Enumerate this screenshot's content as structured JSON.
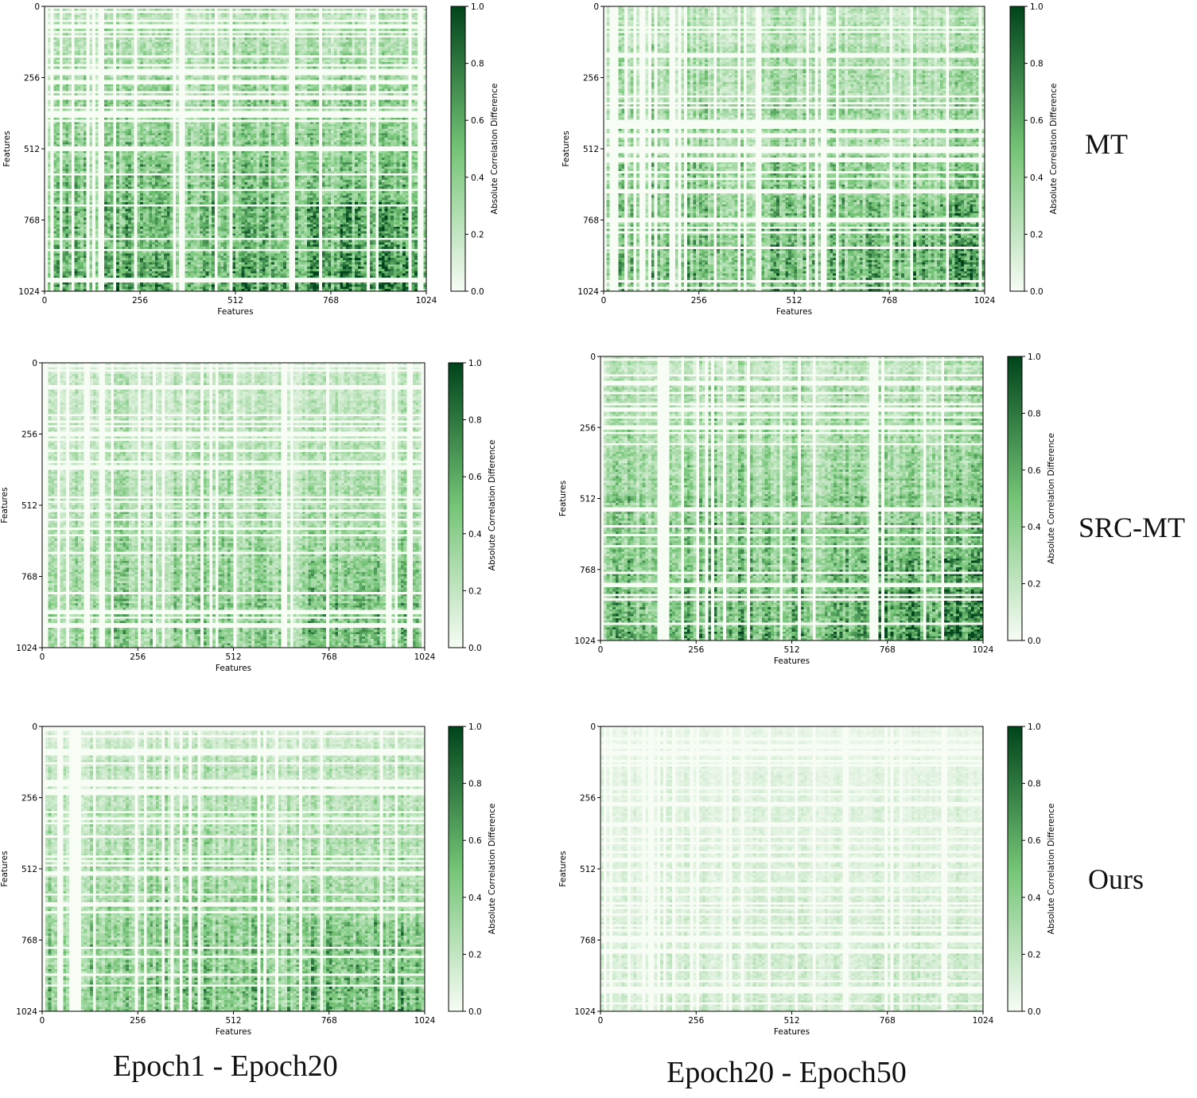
{
  "figure": {
    "column_labels": [
      "Epoch1  -  Epoch20",
      "Epoch20  -  Epoch50"
    ],
    "row_labels": [
      "MT",
      "SRC-MT",
      "Ours"
    ]
  },
  "colors": {
    "cmap_low": "#f7fcf5",
    "cmap_mid": "#74c476",
    "cmap_high": "#00441b",
    "axis": "#000000"
  },
  "chart_data": [
    {
      "type": "heatmap",
      "model": "MT",
      "comparison": "Epoch1 - Epoch20",
      "xlabel": "Features",
      "ylabel": "Features",
      "xticks": [
        "0",
        "256",
        "512",
        "768",
        "1024"
      ],
      "yticks": [
        "0",
        "256",
        "512",
        "768",
        "1024"
      ],
      "xlim": [
        0,
        1024
      ],
      "ylim": [
        1024,
        0
      ],
      "colorbar": {
        "label": "Absolute Correlation Difference",
        "range": [
          0.0,
          1.0
        ],
        "ticks": [
          "0.0",
          "0.2",
          "0.4",
          "0.6",
          "0.8",
          "1.0"
        ]
      },
      "mean_intensity": 0.45,
      "seed": 11
    },
    {
      "type": "heatmap",
      "model": "MT",
      "comparison": "Epoch20 - Epoch50",
      "xlabel": "Features",
      "ylabel": "Features",
      "xticks": [
        "0",
        "256",
        "512",
        "768",
        "1024"
      ],
      "yticks": [
        "0",
        "256",
        "512",
        "768",
        "1024"
      ],
      "xlim": [
        0,
        1024
      ],
      "ylim": [
        1024,
        0
      ],
      "colorbar": {
        "label": "Absolute Correlation Difference",
        "range": [
          0.0,
          1.0
        ],
        "ticks": [
          "0.0",
          "0.2",
          "0.4",
          "0.6",
          "0.8",
          "1.0"
        ]
      },
      "mean_intensity": 0.42,
      "seed": 23
    },
    {
      "type": "heatmap",
      "model": "SRC-MT",
      "comparison": "Epoch1 - Epoch20",
      "xlabel": "Features",
      "ylabel": "Features",
      "xticks": [
        "0",
        "256",
        "512",
        "768",
        "1024"
      ],
      "yticks": [
        "0",
        "256",
        "512",
        "768",
        "1024"
      ],
      "xlim": [
        0,
        1024
      ],
      "ylim": [
        1024,
        0
      ],
      "colorbar": {
        "label": "Absolute Correlation Difference",
        "range": [
          0.0,
          1.0
        ],
        "ticks": [
          "0.0",
          "0.2",
          "0.4",
          "0.6",
          "0.8",
          "1.0"
        ]
      },
      "mean_intensity": 0.32,
      "seed": 37
    },
    {
      "type": "heatmap",
      "model": "SRC-MT",
      "comparison": "Epoch20 - Epoch50",
      "xlabel": "Features",
      "ylabel": "Features",
      "xticks": [
        "0",
        "256",
        "512",
        "768",
        "1024"
      ],
      "yticks": [
        "0",
        "256",
        "512",
        "768",
        "1024"
      ],
      "xlim": [
        0,
        1024
      ],
      "ylim": [
        1024,
        0
      ],
      "colorbar": {
        "label": "Absolute Correlation Difference",
        "range": [
          0.0,
          1.0
        ],
        "ticks": [
          "0.0",
          "0.2",
          "0.4",
          "0.6",
          "0.8",
          "1.0"
        ]
      },
      "mean_intensity": 0.44,
      "seed": 41
    },
    {
      "type": "heatmap",
      "model": "Ours",
      "comparison": "Epoch1 - Epoch20",
      "xlabel": "Features",
      "ylabel": "Features",
      "xticks": [
        "0",
        "256",
        "512",
        "768",
        "1024"
      ],
      "yticks": [
        "0",
        "256",
        "512",
        "768",
        "1024"
      ],
      "xlim": [
        0,
        1024
      ],
      "ylim": [
        1024,
        0
      ],
      "colorbar": {
        "label": "Absolute Correlation Difference",
        "range": [
          0.0,
          1.0
        ],
        "ticks": [
          "0.0",
          "0.2",
          "0.4",
          "0.6",
          "0.8",
          "1.0"
        ]
      },
      "mean_intensity": 0.35,
      "seed": 53
    },
    {
      "type": "heatmap",
      "model": "Ours",
      "comparison": "Epoch20 - Epoch50",
      "xlabel": "Features",
      "ylabel": "Features",
      "xticks": [
        "0",
        "256",
        "512",
        "768",
        "1024"
      ],
      "yticks": [
        "0",
        "256",
        "512",
        "768",
        "1024"
      ],
      "xlim": [
        0,
        1024
      ],
      "ylim": [
        1024,
        0
      ],
      "colorbar": {
        "label": "Absolute Correlation Difference",
        "range": [
          0.0,
          1.0
        ],
        "ticks": [
          "0.0",
          "0.2",
          "0.4",
          "0.6",
          "0.8",
          "1.0"
        ]
      },
      "mean_intensity": 0.12,
      "seed": 67
    }
  ]
}
